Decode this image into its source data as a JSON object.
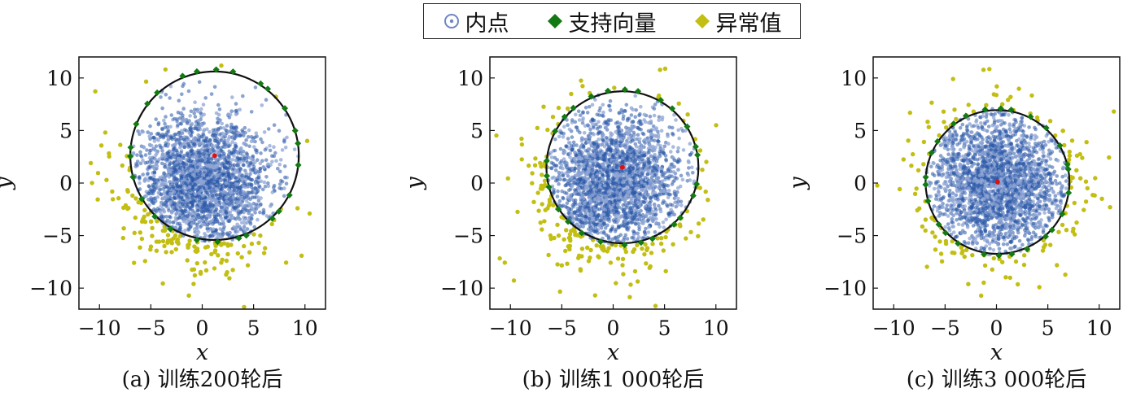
{
  "legend": {
    "inlier": "内点",
    "support": "支持向量",
    "outlier": "异常值"
  },
  "colors": {
    "inlier": "#2a57a8",
    "inlier_light": "#8ea4d4",
    "support": "#137a13",
    "outlier": "#c2be12",
    "center": "#e01010",
    "boundary": "#111111"
  },
  "chart_data": [
    {
      "type": "scatter",
      "caption": "(a) 训练200轮后",
      "xlabel": "x",
      "ylabel": "y",
      "xlim": [
        -12,
        12
      ],
      "ylim": [
        -12,
        12
      ],
      "xticks": [
        -10,
        -5,
        0,
        5,
        10
      ],
      "yticks": [
        -10,
        -5,
        0,
        5,
        10
      ],
      "center": [
        1.2,
        2.6
      ],
      "radius": 8.2,
      "legend": "none",
      "grid": false
    },
    {
      "type": "scatter",
      "caption": "(b) 训练1 000轮后",
      "xlabel": "x",
      "ylabel": "y",
      "xlim": [
        -12,
        12
      ],
      "ylim": [
        -12,
        12
      ],
      "xticks": [
        -10,
        -5,
        0,
        5,
        10
      ],
      "yticks": [
        -10,
        -5,
        0,
        5,
        10
      ],
      "center": [
        0.9,
        1.5
      ],
      "radius": 7.4,
      "legend": "none",
      "grid": false
    },
    {
      "type": "scatter",
      "caption": "(c) 训练3 000轮后",
      "xlabel": "x",
      "ylabel": "y",
      "xlim": [
        -12,
        12
      ],
      "ylim": [
        -12,
        12
      ],
      "xticks": [
        -10,
        -5,
        0,
        5,
        10
      ],
      "yticks": [
        -10,
        -5,
        0,
        5,
        10
      ],
      "center": [
        0.1,
        0.1
      ],
      "radius": 7.0,
      "legend": "none",
      "grid": false
    }
  ]
}
